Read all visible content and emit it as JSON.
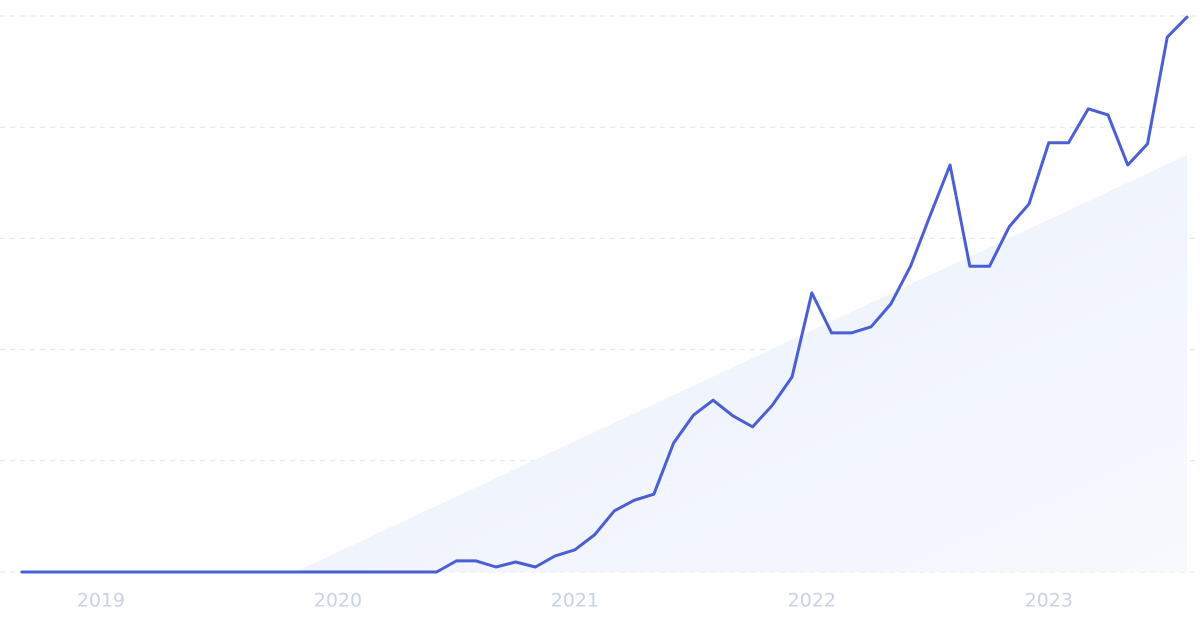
{
  "chart_data": {
    "type": "line",
    "categories": [
      null,
      null,
      null,
      null,
      "2019",
      null,
      null,
      null,
      null,
      null,
      null,
      null,
      null,
      null,
      null,
      null,
      "2020",
      null,
      null,
      null,
      null,
      null,
      null,
      null,
      null,
      null,
      null,
      null,
      "2021",
      null,
      null,
      null,
      null,
      null,
      null,
      null,
      null,
      null,
      null,
      null,
      "2022",
      null,
      null,
      null,
      null,
      null,
      null,
      null,
      null,
      null,
      null,
      null,
      "2023",
      null,
      null,
      null,
      null,
      null,
      null,
      null
    ],
    "values": [
      0,
      0,
      0,
      0,
      0,
      0,
      0,
      0,
      0,
      0,
      0,
      0,
      0,
      0,
      0,
      0,
      0,
      0,
      0,
      0,
      0,
      0,
      2.0,
      2.0,
      0.9,
      1.8,
      0.9,
      2.9,
      4.0,
      6.7,
      11.0,
      12.9,
      14.0,
      23.2,
      28.2,
      30.9,
      28.1,
      26.1,
      30.0,
      35.1,
      50.2,
      43.0,
      43.0,
      44.1,
      48.2,
      55.0,
      64.2,
      73.2,
      55.0,
      55.0,
      62.1,
      66.2,
      77.2,
      77.2,
      83.3,
      82.2,
      73.2,
      77.0,
      96.2,
      99.8
    ],
    "color": "#4a5fd3",
    "ylim": [
      0,
      100
    ],
    "yticks": [
      0,
      20,
      40,
      60,
      80,
      100
    ],
    "grid": true
  }
}
